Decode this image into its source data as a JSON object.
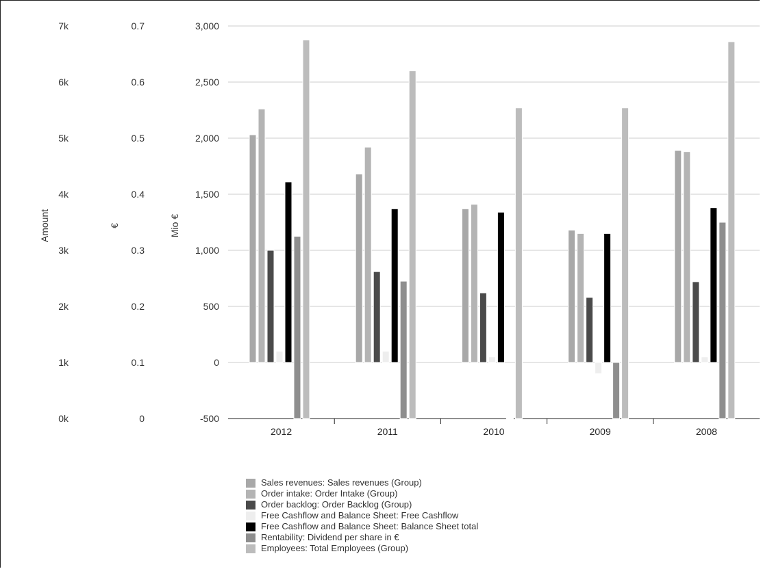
{
  "chart_data": {
    "type": "bar",
    "categories": [
      "2012",
      "2011",
      "2010",
      "2009",
      "2008"
    ],
    "axes": {
      "left_amount": {
        "label": "Amount",
        "ticks": [
          "0k",
          "1k",
          "2k",
          "3k",
          "4k",
          "5k",
          "6k",
          "7k"
        ],
        "range": [
          0,
          7000
        ]
      },
      "left_euro": {
        "label": "€",
        "ticks": [
          "0",
          "0.1",
          "0.2",
          "0.3",
          "0.4",
          "0.5",
          "0.6",
          "0.7"
        ],
        "range": [
          0,
          0.7
        ]
      },
      "left_mio": {
        "label": "Mio €",
        "ticks": [
          "-500",
          "0",
          "500",
          "1,000",
          "1,500",
          "2,000",
          "2,500",
          "3,000"
        ],
        "range": [
          -500,
          3000
        ]
      }
    },
    "grid": true,
    "legend_position": "bottom",
    "series": [
      {
        "name": "Sales revenues: Sales revenues (Group)",
        "axis": "left_mio",
        "color": "#a8a8a8",
        "values": [
          2030,
          1680,
          1370,
          1180,
          1890
        ]
      },
      {
        "name": "Order intake: Order Intake (Group)",
        "axis": "left_mio",
        "color": "#b4b4b4",
        "values": [
          2260,
          1920,
          1410,
          1150,
          1880
        ]
      },
      {
        "name": "Order backlog: Order Backlog (Group)",
        "axis": "left_mio",
        "color": "#4a4a4a",
        "values": [
          1000,
          810,
          620,
          580,
          720
        ]
      },
      {
        "name": "Free Cashflow and Balance Sheet: Free Cashflow",
        "axis": "left_mio",
        "color": "#eeeeee",
        "values": [
          100,
          100,
          50,
          -100,
          50
        ]
      },
      {
        "name": "Free Cashflow and Balance Sheet: Balance Sheet total",
        "axis": "left_mio",
        "color": "#000000",
        "values": [
          1610,
          1370,
          1340,
          1150,
          1380
        ]
      },
      {
        "name": "Rentability: Dividend per share in €",
        "axis": "left_euro",
        "color": "#8e8e8e",
        "values": [
          0.325,
          0.245,
          0.0,
          0.1,
          0.35
        ]
      },
      {
        "name": "Employees: Total Employees (Group)",
        "axis": "left_amount",
        "color": "#bcbcbc",
        "values": [
          6750,
          6200,
          5540,
          5540,
          6720
        ]
      }
    ]
  }
}
